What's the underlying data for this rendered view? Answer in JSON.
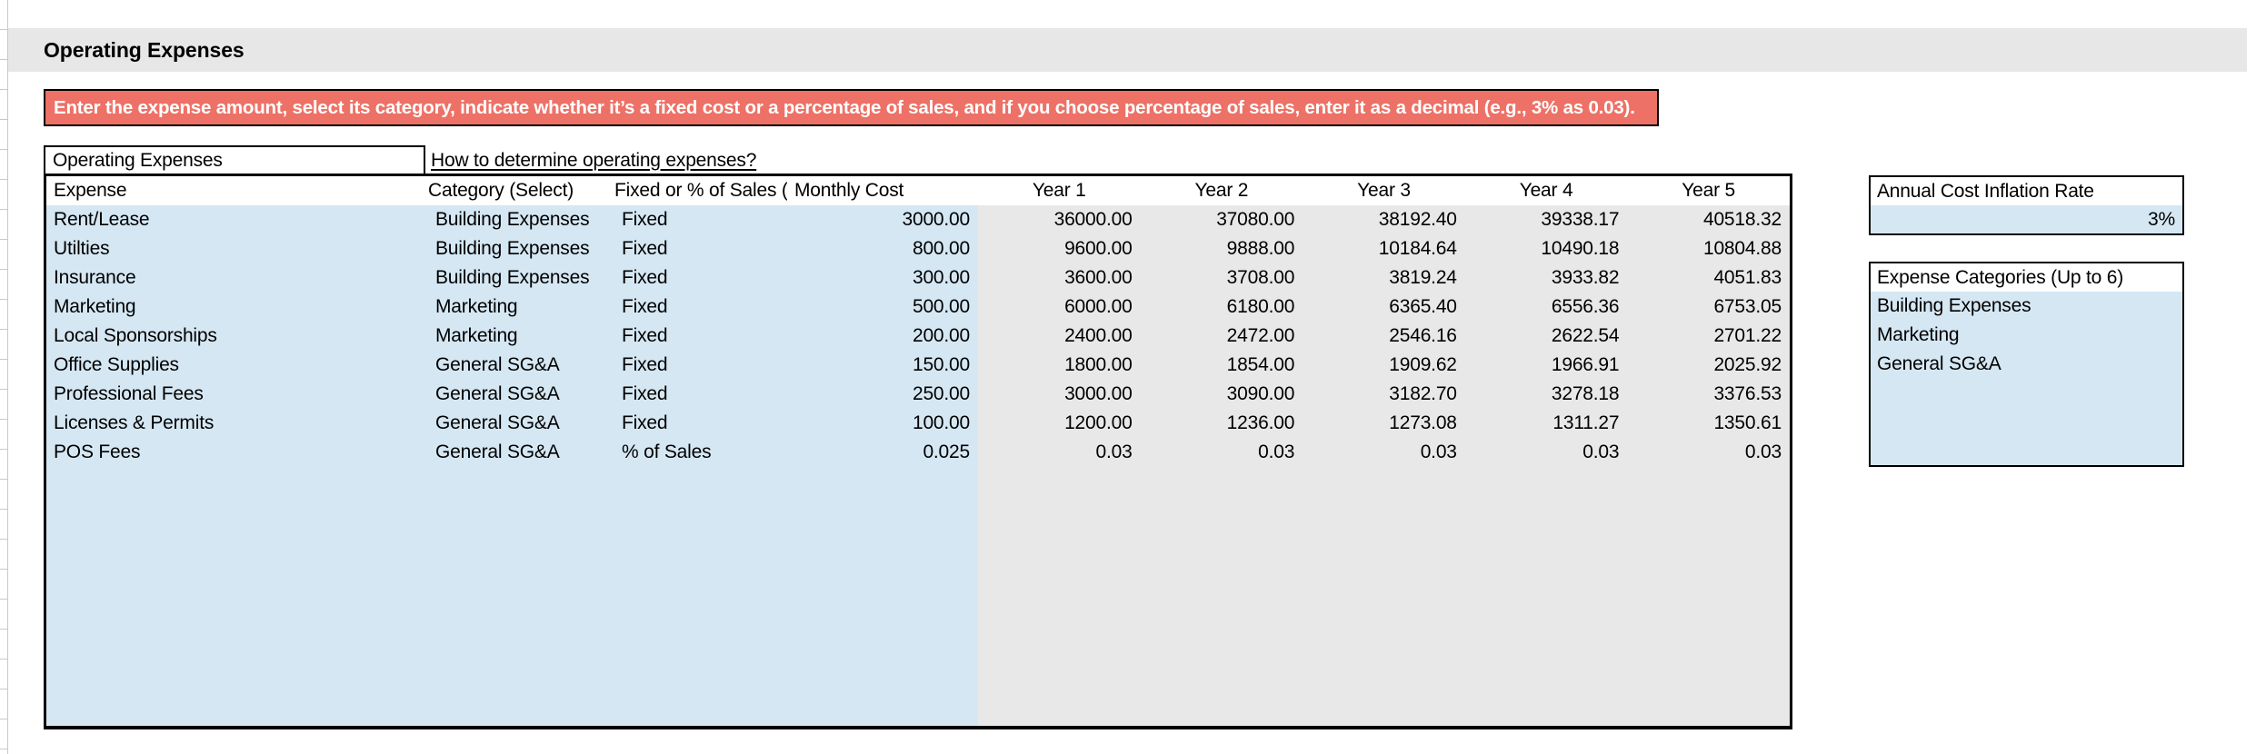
{
  "sheet": {
    "title": "Operating Expenses"
  },
  "banner": {
    "text": "Enter the expense amount, select its category, indicate whether it’s a fixed cost or a percentage of sales, and if you choose percentage of sales, enter it as a decimal (e.g., 3% as 0.03)."
  },
  "table": {
    "title_cell": "Operating Expenses",
    "help_link": "How to determine operating expenses?",
    "headers": {
      "expense": "Expense",
      "category": "Category (Select)",
      "fixed_or_pct": "Fixed or % of Sales (",
      "monthly_cost": "Monthly Cost",
      "years": [
        "Year 1",
        "Year 2",
        "Year 3",
        "Year 4",
        "Year 5"
      ]
    },
    "rows": [
      {
        "expense": "Rent/Lease",
        "category": "Building Expenses",
        "type": "Fixed",
        "monthly": "3000.00",
        "y1": "36000.00",
        "y2": "37080.00",
        "y3": "38192.40",
        "y4": "39338.17",
        "y5": "40518.32"
      },
      {
        "expense": "Utilties",
        "category": "Building Expenses",
        "type": "Fixed",
        "monthly": "800.00",
        "y1": "9600.00",
        "y2": "9888.00",
        "y3": "10184.64",
        "y4": "10490.18",
        "y5": "10804.88"
      },
      {
        "expense": "Insurance",
        "category": "Building Expenses",
        "type": "Fixed",
        "monthly": "300.00",
        "y1": "3600.00",
        "y2": "3708.00",
        "y3": "3819.24",
        "y4": "3933.82",
        "y5": "4051.83"
      },
      {
        "expense": "Marketing",
        "category": "Marketing",
        "type": "Fixed",
        "monthly": "500.00",
        "y1": "6000.00",
        "y2": "6180.00",
        "y3": "6365.40",
        "y4": "6556.36",
        "y5": "6753.05"
      },
      {
        "expense": "Local Sponsorships",
        "category": "Marketing",
        "type": "Fixed",
        "monthly": "200.00",
        "y1": "2400.00",
        "y2": "2472.00",
        "y3": "2546.16",
        "y4": "2622.54",
        "y5": "2701.22"
      },
      {
        "expense": "Office Supplies",
        "category": "General SG&A",
        "type": "Fixed",
        "monthly": "150.00",
        "y1": "1800.00",
        "y2": "1854.00",
        "y3": "1909.62",
        "y4": "1966.91",
        "y5": "2025.92"
      },
      {
        "expense": "Professional Fees",
        "category": "General SG&A",
        "type": "Fixed",
        "monthly": "250.00",
        "y1": "3000.00",
        "y2": "3090.00",
        "y3": "3182.70",
        "y4": "3278.18",
        "y5": "3376.53"
      },
      {
        "expense": "Licenses & Permits",
        "category": "General SG&A",
        "type": "Fixed",
        "monthly": "100.00",
        "y1": "1200.00",
        "y2": "1236.00",
        "y3": "1273.08",
        "y4": "1311.27",
        "y5": "1350.61"
      },
      {
        "expense": "POS Fees",
        "category": "General SG&A",
        "type": "% of Sales",
        "monthly": "0.025",
        "y1": "0.03",
        "y2": "0.03",
        "y3": "0.03",
        "y4": "0.03",
        "y5": "0.03"
      }
    ]
  },
  "side": {
    "inflation": {
      "label": "Annual Cost Inflation Rate",
      "value": "3%"
    },
    "categories": {
      "label": "Expense Categories (Up to 6)",
      "items": [
        "Building Expenses",
        "Marketing",
        "General SG&A"
      ]
    }
  },
  "colors": {
    "input_blue": "#d5e7f3",
    "calc_gray": "#e8e8e8",
    "banner_red": "#ed7166",
    "band_gray": "#e8e7e7"
  }
}
